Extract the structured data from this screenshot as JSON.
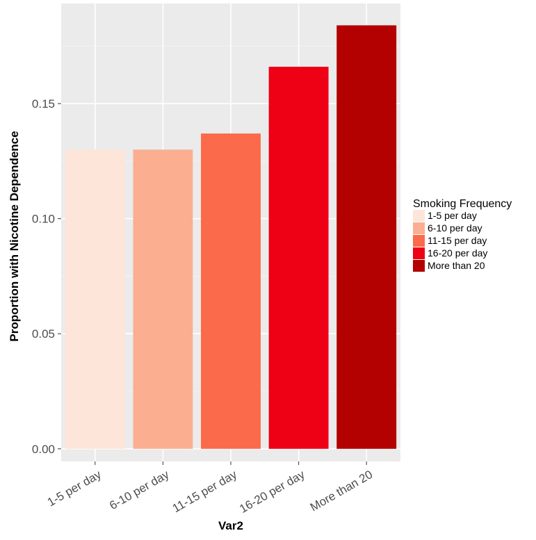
{
  "chart_data": {
    "type": "bar",
    "title": "",
    "xlabel": "Var2",
    "ylabel": "Proportion with Nicotine Dependence",
    "categories": [
      "1-5 per day",
      "6-10 per day",
      "11-15 per day",
      "16-20 per day",
      "More than 20"
    ],
    "values": [
      0.13,
      0.13,
      0.137,
      0.166,
      0.184
    ],
    "colors": [
      "#FEE5D9",
      "#FCAE91",
      "#FB6A4A",
      "#EE0015",
      "#B30000"
    ],
    "ylim": [
      -0.0055,
      0.1935
    ],
    "yticks": [
      0.0,
      0.05,
      0.1,
      0.15
    ],
    "ytick_labels": [
      "0.00",
      "0.05",
      "0.10",
      "0.15"
    ],
    "grid": true,
    "background_color": "#EBEBEB",
    "legend": {
      "title": "Smoking Frequency",
      "placement": "right",
      "entries": [
        "1-5 per day",
        "6-10 per day",
        "11-15 per day",
        "16-20 per day",
        "More than 20"
      ]
    }
  }
}
